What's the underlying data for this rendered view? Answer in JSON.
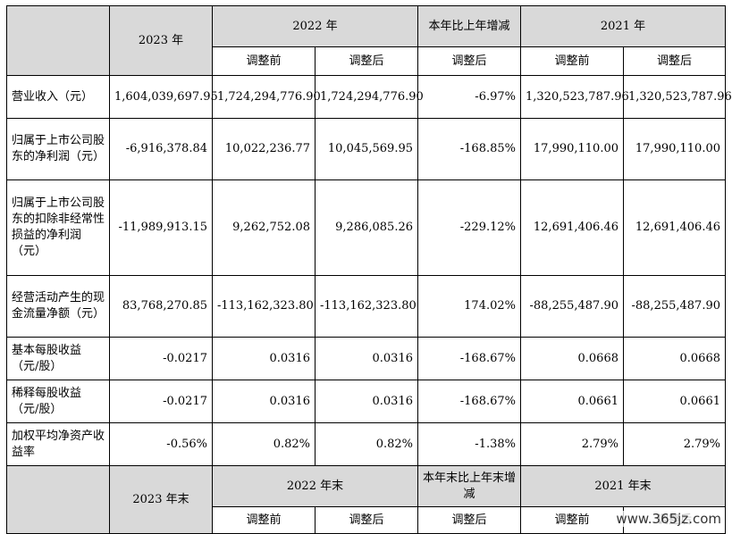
{
  "header": {
    "y2023": "2023 年",
    "y2022": "2022 年",
    "change": "本年比上年增减",
    "y2021": "2021 年",
    "before": "调整前",
    "after": "调整后"
  },
  "rows": [
    {
      "label": "营业收入（元）",
      "v2023": "1,604,039,697.95",
      "v2022_before": "1,724,294,776.90",
      "v2022_after": "1,724,294,776.90",
      "change": "-6.97%",
      "v2021_before": "1,320,523,787.96",
      "v2021_after": "1,320,523,787.96"
    },
    {
      "label": "归属于上市公司股东的净利润（元）",
      "v2023": "-6,916,378.84",
      "v2022_before": "10,022,236.77",
      "v2022_after": "10,045,569.95",
      "change": "-168.85%",
      "v2021_before": "17,990,110.00",
      "v2021_after": "17,990,110.00"
    },
    {
      "label": "归属于上市公司股东的扣除非经常性损益的净利润（元）",
      "v2023": "-11,989,913.15",
      "v2022_before": "9,262,752.08",
      "v2022_after": "9,286,085.26",
      "change": "-229.12%",
      "v2021_before": "12,691,406.46",
      "v2021_after": "12,691,406.46"
    },
    {
      "label": "经营活动产生的现金流量净额（元）",
      "v2023": "83,768,270.85",
      "v2022_before": "-113,162,323.80",
      "v2022_after": "-113,162,323.80",
      "change": "174.02%",
      "v2021_before": "-88,255,487.90",
      "v2021_after": "-88,255,487.90"
    },
    {
      "label": "基本每股收益（元/股）",
      "v2023": "-0.0217",
      "v2022_before": "0.0316",
      "v2022_after": "0.0316",
      "change": "-168.67%",
      "v2021_before": "0.0668",
      "v2021_after": "0.0668"
    },
    {
      "label": "稀释每股收益（元/股）",
      "v2023": "-0.0217",
      "v2022_before": "0.0316",
      "v2022_after": "0.0316",
      "change": "-168.67%",
      "v2021_before": "0.0661",
      "v2021_after": "0.0661"
    },
    {
      "label": "加权平均净资产收益率",
      "v2023": "-0.56%",
      "v2022_before": "0.82%",
      "v2022_after": "0.82%",
      "change": "-1.38%",
      "v2021_before": "2.79%",
      "v2021_after": "2.79%"
    }
  ],
  "footer_header": {
    "end2023": "2023 年末",
    "end2022": "2022 年末",
    "change_end": "本年末比上年末增减",
    "end2021": "2021 年末",
    "before": "调整前",
    "after": "调整后"
  },
  "watermark": "www.365jz.com"
}
